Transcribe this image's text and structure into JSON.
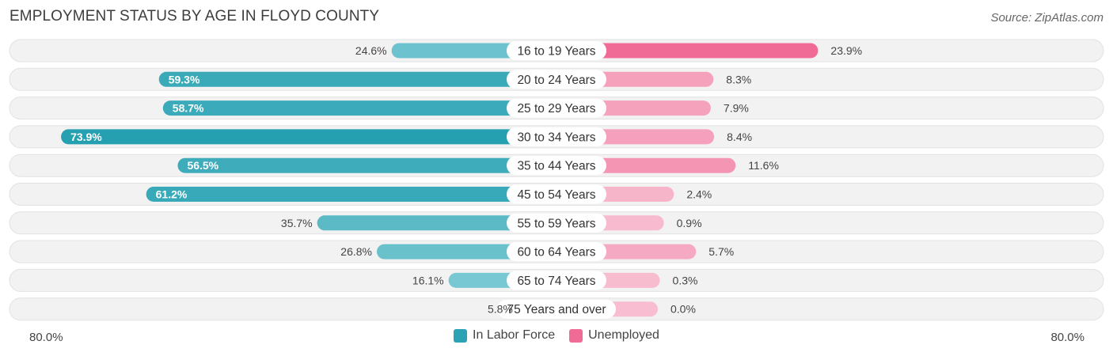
{
  "header": {
    "title": "EMPLOYMENT STATUS BY AGE IN FLOYD COUNTY",
    "source": "Source: ZipAtlas.com"
  },
  "axis": {
    "left_label": "80.0%",
    "right_label": "80.0%"
  },
  "legend": {
    "items": [
      {
        "label": "In Labor Force",
        "color": "#2ba3b4"
      },
      {
        "label": "Unemployed",
        "color": "#f06b96"
      }
    ]
  },
  "chart_data": {
    "type": "bar",
    "orientation": "horizontal-diverging",
    "title": "EMPLOYMENT STATUS BY AGE IN FLOYD COUNTY",
    "categories": [
      "16 to 19 Years",
      "20 to 24 Years",
      "25 to 29 Years",
      "30 to 34 Years",
      "35 to 44 Years",
      "45 to 54 Years",
      "55 to 59 Years",
      "60 to 64 Years",
      "65 to 74 Years",
      "75 Years and over"
    ],
    "series": [
      {
        "name": "In Labor Force",
        "values": [
          24.6,
          59.3,
          58.7,
          73.9,
          56.5,
          61.2,
          35.7,
          26.8,
          16.1,
          5.8
        ],
        "labels": [
          "24.6%",
          "59.3%",
          "58.7%",
          "73.9%",
          "56.5%",
          "61.2%",
          "35.7%",
          "26.8%",
          "16.1%",
          "5.8%"
        ]
      },
      {
        "name": "Unemployed",
        "values": [
          23.9,
          8.3,
          7.9,
          8.4,
          11.6,
          2.4,
          0.9,
          5.7,
          0.3,
          0.0
        ],
        "labels": [
          "23.9%",
          "8.3%",
          "7.9%",
          "8.4%",
          "11.6%",
          "2.4%",
          "0.9%",
          "5.7%",
          "0.3%",
          "0.0%"
        ]
      }
    ],
    "xlim": [
      -80,
      80
    ],
    "grid": false,
    "legend_position": "bottom-center"
  }
}
